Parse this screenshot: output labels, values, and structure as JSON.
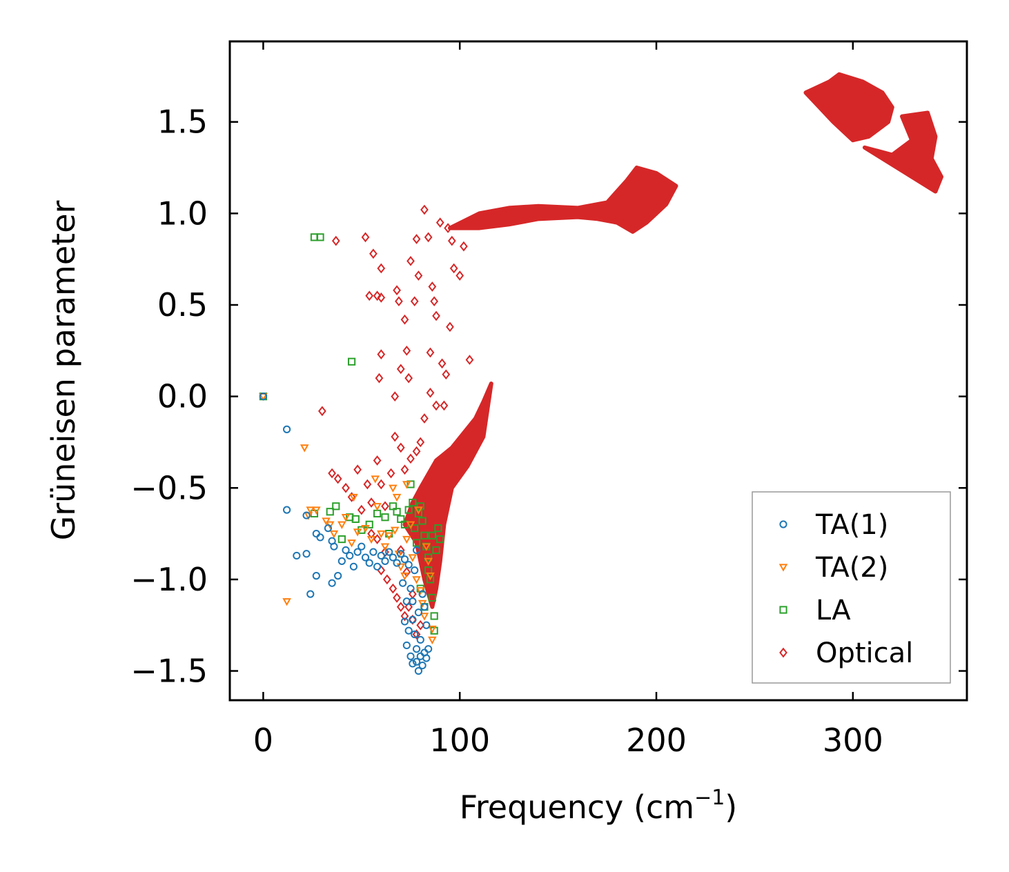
{
  "chart_data": {
    "type": "scatter",
    "title": "",
    "xlabel": "Frequency (cm",
    "xlabel_sup": "−1",
    "xlabel_end": ")",
    "ylabel": "Grüneisen parameter",
    "xlim": [
      -17,
      358
    ],
    "ylim": [
      -1.66,
      1.94
    ],
    "xticks": [
      0,
      100,
      200,
      300
    ],
    "xtick_labels": [
      "0",
      "100",
      "200",
      "300"
    ],
    "yticks": [
      -1.5,
      -1.0,
      -0.5,
      0.0,
      0.5,
      1.0,
      1.5
    ],
    "ytick_labels": [
      "−1.5",
      "−1.0",
      "−0.5",
      "0.0",
      "0.5",
      "1.0",
      "1.5"
    ],
    "legend_position": "lower-right",
    "series": [
      {
        "name": "TA(1)",
        "marker": "circle",
        "color": "#1f77b4",
        "points": [
          [
            0,
            0.0
          ],
          [
            12,
            -0.18
          ],
          [
            12,
            -0.62
          ],
          [
            17,
            -0.87
          ],
          [
            22,
            -0.65
          ],
          [
            22,
            -0.86
          ],
          [
            24,
            -1.08
          ],
          [
            27,
            -0.75
          ],
          [
            27,
            -0.98
          ],
          [
            29,
            -0.77
          ],
          [
            33,
            -0.72
          ],
          [
            35,
            -0.79
          ],
          [
            35,
            -1.02
          ],
          [
            36,
            -0.82
          ],
          [
            38,
            -0.98
          ],
          [
            40,
            -0.9
          ],
          [
            42,
            -0.84
          ],
          [
            44,
            -0.87
          ],
          [
            46,
            -0.93
          ],
          [
            48,
            -0.85
          ],
          [
            50,
            -0.82
          ],
          [
            52,
            -0.88
          ],
          [
            54,
            -0.91
          ],
          [
            56,
            -0.85
          ],
          [
            58,
            -0.93
          ],
          [
            60,
            -0.87
          ],
          [
            62,
            -0.9
          ],
          [
            64,
            -0.85
          ],
          [
            66,
            -0.88
          ],
          [
            68,
            -0.91
          ],
          [
            70,
            -0.86
          ],
          [
            72,
            -0.89
          ],
          [
            74,
            -0.92
          ],
          [
            75,
            -1.05
          ],
          [
            76,
            -1.12
          ],
          [
            76,
            -1.22
          ],
          [
            77,
            -1.3
          ],
          [
            78,
            -1.38
          ],
          [
            78,
            -1.45
          ],
          [
            79,
            -1.5
          ],
          [
            80,
            -1.42
          ],
          [
            80,
            -1.33
          ],
          [
            81,
            -1.47
          ],
          [
            82,
            -1.4
          ],
          [
            83,
            -1.43
          ],
          [
            83,
            -1.25
          ],
          [
            72,
            -1.23
          ],
          [
            74,
            -1.28
          ],
          [
            73,
            -1.36
          ],
          [
            75,
            -1.42
          ],
          [
            76,
            -1.46
          ],
          [
            79,
            -1.18
          ],
          [
            81,
            -1.08
          ],
          [
            82,
            -1.15
          ],
          [
            84,
            -1.38
          ],
          [
            77,
            -0.95
          ],
          [
            78,
            -0.84
          ],
          [
            71,
            -1.02
          ],
          [
            73,
            -1.12
          ]
        ]
      },
      {
        "name": "TA(2)",
        "marker": "triangle",
        "color": "#ff7f0e",
        "points": [
          [
            0,
            0.0
          ],
          [
            12,
            -1.12
          ],
          [
            21,
            -0.28
          ],
          [
            23,
            -0.65
          ],
          [
            24,
            -0.62
          ],
          [
            27,
            -0.62
          ],
          [
            32,
            -0.68
          ],
          [
            34,
            -0.7
          ],
          [
            36,
            -0.75
          ],
          [
            40,
            -0.7
          ],
          [
            42,
            -0.66
          ],
          [
            45,
            -0.8
          ],
          [
            46,
            -0.55
          ],
          [
            48,
            -0.74
          ],
          [
            52,
            -0.72
          ],
          [
            55,
            -0.78
          ],
          [
            57,
            -0.45
          ],
          [
            58,
            -0.6
          ],
          [
            60,
            -0.75
          ],
          [
            62,
            -0.82
          ],
          [
            64,
            -0.76
          ],
          [
            66,
            -0.5
          ],
          [
            67,
            -0.73
          ],
          [
            69,
            -0.86
          ],
          [
            70,
            -0.93
          ],
          [
            72,
            -0.98
          ],
          [
            73,
            -0.78
          ],
          [
            75,
            -0.7
          ],
          [
            76,
            -0.88
          ],
          [
            78,
            -1.0
          ],
          [
            80,
            -1.06
          ],
          [
            81,
            -1.13
          ],
          [
            82,
            -1.2
          ],
          [
            83,
            -0.82
          ],
          [
            84,
            -0.9
          ],
          [
            85,
            -0.98
          ],
          [
            86,
            -1.27
          ],
          [
            86,
            -1.33
          ],
          [
            73,
            -0.48
          ],
          [
            79,
            -0.62
          ],
          [
            68,
            -0.55
          ]
        ]
      },
      {
        "name": "LA",
        "marker": "square",
        "color": "#2ca02c",
        "points": [
          [
            0,
            0.0
          ],
          [
            26,
            0.87
          ],
          [
            29,
            0.87
          ],
          [
            45,
            0.19
          ],
          [
            26,
            -0.64
          ],
          [
            34,
            -0.63
          ],
          [
            37,
            -0.6
          ],
          [
            40,
            -0.78
          ],
          [
            44,
            -0.66
          ],
          [
            47,
            -0.67
          ],
          [
            50,
            -0.73
          ],
          [
            54,
            -0.7
          ],
          [
            58,
            -0.64
          ],
          [
            62,
            -0.66
          ],
          [
            64,
            -0.75
          ],
          [
            66,
            -0.6
          ],
          [
            68,
            -0.63
          ],
          [
            70,
            -0.67
          ],
          [
            72,
            -0.7
          ],
          [
            74,
            -0.62
          ],
          [
            75,
            -0.48
          ],
          [
            76,
            -0.58
          ],
          [
            77,
            -0.72
          ],
          [
            78,
            -0.8
          ],
          [
            79,
            -0.64
          ],
          [
            80,
            -0.6
          ],
          [
            81,
            -0.68
          ],
          [
            82,
            -0.76
          ],
          [
            83,
            -0.82
          ],
          [
            84,
            -0.88
          ],
          [
            84,
            -0.95
          ],
          [
            85,
            -1.0
          ],
          [
            86,
            -0.76
          ],
          [
            86,
            -1.1
          ],
          [
            87,
            -1.2
          ],
          [
            87,
            -1.28
          ],
          [
            88,
            -0.84
          ],
          [
            89,
            -0.72
          ],
          [
            90,
            -0.78
          ],
          [
            80,
            -1.05
          ],
          [
            82,
            -1.15
          ]
        ]
      },
      {
        "name": "Optical",
        "marker": "diamond",
        "color": "#d62728",
        "points": [
          [
            30,
            -0.08
          ],
          [
            37,
            0.85
          ],
          [
            52,
            0.87
          ],
          [
            54,
            0.55
          ],
          [
            56,
            0.78
          ],
          [
            58,
            0.55
          ],
          [
            59,
            0.1
          ],
          [
            60,
            0.23
          ],
          [
            60,
            0.54
          ],
          [
            60,
            0.7
          ],
          [
            67,
            0.0
          ],
          [
            68,
            0.58
          ],
          [
            69,
            0.52
          ],
          [
            70,
            0.15
          ],
          [
            72,
            0.42
          ],
          [
            73,
            0.25
          ],
          [
            74,
            0.1
          ],
          [
            75,
            0.74
          ],
          [
            77,
            0.52
          ],
          [
            78,
            0.86
          ],
          [
            79,
            0.66
          ],
          [
            82,
            1.02
          ],
          [
            84,
            0.87
          ],
          [
            85,
            0.24
          ],
          [
            85,
            0.02
          ],
          [
            86,
            0.6
          ],
          [
            87,
            0.52
          ],
          [
            88,
            0.44
          ],
          [
            90,
            0.95
          ],
          [
            91,
            0.18
          ],
          [
            93,
            0.12
          ],
          [
            94,
            0.92
          ],
          [
            95,
            0.38
          ],
          [
            96,
            0.85
          ],
          [
            97,
            0.7
          ],
          [
            100,
            0.66
          ],
          [
            102,
            0.82
          ],
          [
            105,
            0.2
          ],
          [
            35,
            -0.42
          ],
          [
            38,
            -0.45
          ],
          [
            42,
            -0.5
          ],
          [
            45,
            -0.55
          ],
          [
            48,
            -0.4
          ],
          [
            50,
            -0.62
          ],
          [
            53,
            -0.48
          ],
          [
            55,
            -0.58
          ],
          [
            58,
            -0.35
          ],
          [
            60,
            -0.48
          ],
          [
            62,
            -0.6
          ],
          [
            65,
            -0.42
          ],
          [
            67,
            -0.22
          ],
          [
            70,
            -0.28
          ],
          [
            72,
            -0.4
          ],
          [
            75,
            -0.34
          ],
          [
            78,
            -0.3
          ],
          [
            80,
            -0.25
          ],
          [
            82,
            -0.12
          ],
          [
            88,
            -0.05
          ],
          [
            92,
            -0.05
          ],
          [
            55,
            -0.75
          ],
          [
            58,
            -0.78
          ],
          [
            62,
            -0.85
          ],
          [
            60,
            -0.95
          ],
          [
            63,
            -1.0
          ],
          [
            66,
            -1.05
          ],
          [
            68,
            -1.1
          ],
          [
            70,
            -1.15
          ],
          [
            72,
            -1.2
          ],
          [
            74,
            -1.15
          ],
          [
            76,
            -1.22
          ],
          [
            78,
            -1.3
          ],
          [
            80,
            -1.25
          ],
          [
            70,
            -0.84
          ],
          [
            73,
            -0.96
          ],
          [
            76,
            -1.08
          ]
        ],
        "clusters": [
          {
            "region": "optical-dense-low",
            "vertices": [
              [
                80,
                -0.5
              ],
              [
                88,
                -0.35
              ],
              [
                96,
                -0.28
              ],
              [
                108,
                -0.12
              ],
              [
                112,
                -0.03
              ],
              [
                116,
                0.07
              ],
              [
                112,
                -0.22
              ],
              [
                104,
                -0.38
              ],
              [
                96,
                -0.5
              ],
              [
                92,
                -0.7
              ],
              [
                90,
                -0.9
              ],
              [
                88,
                -1.05
              ],
              [
                86,
                -1.15
              ],
              [
                82,
                -1.0
              ],
              [
                78,
                -0.8
              ],
              [
                72,
                -0.7
              ],
              [
                76,
                -0.58
              ]
            ]
          },
          {
            "region": "optical-branch-mid",
            "vertices": [
              [
                95,
                0.92
              ],
              [
                110,
                1.0
              ],
              [
                125,
                1.03
              ],
              [
                140,
                1.04
              ],
              [
                160,
                1.03
              ],
              [
                175,
                1.06
              ],
              [
                185,
                1.18
              ],
              [
                190,
                1.25
              ],
              [
                200,
                1.22
              ],
              [
                210,
                1.15
              ],
              [
                205,
                1.05
              ],
              [
                195,
                0.95
              ],
              [
                188,
                0.9
              ],
              [
                180,
                0.95
              ],
              [
                170,
                0.97
              ],
              [
                160,
                0.98
              ],
              [
                140,
                0.97
              ],
              [
                125,
                0.94
              ],
              [
                110,
                0.92
              ]
            ]
          },
          {
            "region": "optical-upper-left",
            "vertices": [
              [
                276,
                1.66
              ],
              [
                288,
                1.72
              ],
              [
                293,
                1.76
              ],
              [
                305,
                1.72
              ],
              [
                315,
                1.66
              ],
              [
                320,
                1.58
              ],
              [
                318,
                1.5
              ],
              [
                308,
                1.42
              ],
              [
                300,
                1.4
              ],
              [
                290,
                1.5
              ],
              [
                283,
                1.58
              ]
            ]
          },
          {
            "region": "optical-upper-right",
            "vertices": [
              [
                325,
                1.53
              ],
              [
                338,
                1.55
              ],
              [
                342,
                1.42
              ],
              [
                340,
                1.3
              ],
              [
                345,
                1.2
              ],
              [
                342,
                1.12
              ],
              [
                330,
                1.2
              ],
              [
                318,
                1.28
              ],
              [
                306,
                1.36
              ],
              [
                320,
                1.32
              ],
              [
                330,
                1.4
              ]
            ]
          }
        ]
      }
    ]
  }
}
